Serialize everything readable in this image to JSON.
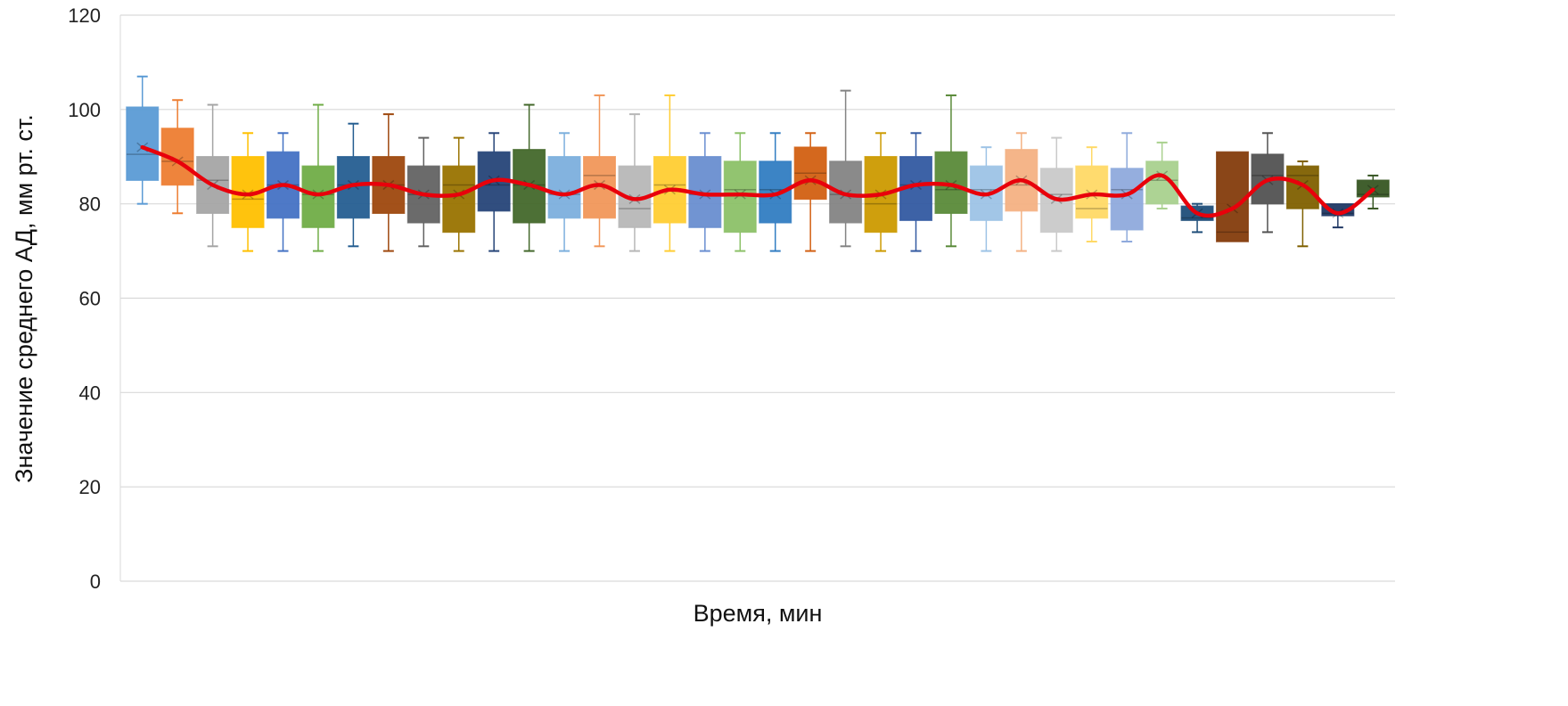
{
  "chart_data": {
    "type": "boxplot",
    "title": "",
    "xlabel": "Время, мин",
    "ylabel": "Значение среднего АД, мм рт. ст.",
    "ylim": [
      0,
      120
    ],
    "yticks": [
      0,
      20,
      40,
      60,
      80,
      100,
      120
    ],
    "grid": true,
    "trend_line_color": "#e8000b",
    "series": [
      {
        "min": 80,
        "q1": 85,
        "median": 90.5,
        "q3": 100.5,
        "max": 107,
        "mean": 92,
        "color": "#5b9bd5"
      },
      {
        "min": 78,
        "q1": 84,
        "median": 89,
        "q3": 96,
        "max": 102,
        "mean": 89,
        "color": "#ed7d31"
      },
      {
        "min": 71,
        "q1": 78,
        "median": 85,
        "q3": 90,
        "max": 101,
        "mean": 84,
        "color": "#a5a5a5"
      },
      {
        "min": 70,
        "q1": 75,
        "median": 81,
        "q3": 90,
        "max": 95,
        "mean": 82,
        "color": "#ffc000"
      },
      {
        "min": 70,
        "q1": 77,
        "median": 84,
        "q3": 91,
        "max": 95,
        "mean": 84,
        "color": "#4472c4"
      },
      {
        "min": 70,
        "q1": 75,
        "median": 82,
        "q3": 88,
        "max": 101,
        "mean": 82,
        "color": "#70ad47"
      },
      {
        "min": 71,
        "q1": 77,
        "median": 84,
        "q3": 90,
        "max": 97,
        "mean": 84,
        "color": "#255e91"
      },
      {
        "min": 70,
        "q1": 78,
        "median": 84,
        "q3": 90,
        "max": 99,
        "mean": 84,
        "color": "#9e480e"
      },
      {
        "min": 71,
        "q1": 76,
        "median": 82,
        "q3": 88,
        "max": 94,
        "mean": 82,
        "color": "#636363"
      },
      {
        "min": 70,
        "q1": 74,
        "median": 84,
        "q3": 88,
        "max": 94,
        "mean": 82,
        "color": "#997300"
      },
      {
        "min": 70,
        "q1": 78.5,
        "median": 84,
        "q3": 91,
        "max": 95,
        "mean": 85,
        "color": "#264478"
      },
      {
        "min": 70,
        "q1": 76,
        "median": 84,
        "q3": 91.5,
        "max": 101,
        "mean": 84,
        "color": "#43682b"
      },
      {
        "min": 70,
        "q1": 77,
        "median": 82,
        "q3": 90,
        "max": 95,
        "mean": 82,
        "color": "#7cafdd"
      },
      {
        "min": 71,
        "q1": 77,
        "median": 86,
        "q3": 90,
        "max": 103,
        "mean": 84,
        "color": "#f1975a"
      },
      {
        "min": 70,
        "q1": 75,
        "median": 79,
        "q3": 88,
        "max": 99,
        "mean": 81,
        "color": "#b7b7b7"
      },
      {
        "min": 70,
        "q1": 76,
        "median": 84,
        "q3": 90,
        "max": 103,
        "mean": 83,
        "color": "#ffcd33"
      },
      {
        "min": 70,
        "q1": 75,
        "median": 82,
        "q3": 90,
        "max": 95,
        "mean": 82,
        "color": "#698ed0"
      },
      {
        "min": 70,
        "q1": 74,
        "median": 83,
        "q3": 89,
        "max": 95,
        "mean": 82,
        "color": "#8cc168"
      },
      {
        "min": 70,
        "q1": 76,
        "median": 83,
        "q3": 89,
        "max": 95,
        "mean": 82,
        "color": "#327dc2"
      },
      {
        "min": 70,
        "q1": 81,
        "median": 86.5,
        "q3": 92,
        "max": 95,
        "mean": 85,
        "color": "#d26012"
      },
      {
        "min": 71,
        "q1": 76,
        "median": 82,
        "q3": 89,
        "max": 104,
        "mean": 82,
        "color": "#848484"
      },
      {
        "min": 70,
        "q1": 74,
        "median": 80,
        "q3": 90,
        "max": 95,
        "mean": 82,
        "color": "#cc9a00"
      },
      {
        "min": 70,
        "q1": 76.5,
        "median": 84,
        "q3": 90,
        "max": 95,
        "mean": 84,
        "color": "#335aa1"
      },
      {
        "min": 71,
        "q1": 78,
        "median": 83,
        "q3": 91,
        "max": 103,
        "mean": 84,
        "color": "#5a8a39"
      },
      {
        "min": 70,
        "q1": 76.5,
        "median": 83,
        "q3": 88,
        "max": 92,
        "mean": 82,
        "color": "#9dc3e6"
      },
      {
        "min": 70,
        "q1": 78.5,
        "median": 84,
        "q3": 91.5,
        "max": 95,
        "mean": 85,
        "color": "#f4b183"
      },
      {
        "min": 70,
        "q1": 74,
        "median": 82,
        "q3": 87.5,
        "max": 94,
        "mean": 81,
        "color": "#c9c9c9"
      },
      {
        "min": 72,
        "q1": 77,
        "median": 79,
        "q3": 88,
        "max": 92,
        "mean": 82,
        "color": "#ffd966"
      },
      {
        "min": 72,
        "q1": 74.5,
        "median": 83,
        "q3": 87.5,
        "max": 95,
        "mean": 82,
        "color": "#8faadc"
      },
      {
        "min": 79,
        "q1": 80,
        "median": 85,
        "q3": 89,
        "max": 93,
        "mean": 86,
        "color": "#a9d18e"
      },
      {
        "min": 74,
        "q1": 76.5,
        "median": 77,
        "q3": 79.5,
        "max": 80,
        "mean": 78,
        "color": "#1f4e79"
      },
      {
        "min": 72,
        "q1": 72,
        "median": 74,
        "q3": 91,
        "max": 91,
        "mean": 79,
        "color": "#843c0c"
      },
      {
        "min": 74,
        "q1": 80,
        "median": 86,
        "q3": 90.5,
        "max": 95,
        "mean": 85,
        "color": "#525252"
      },
      {
        "min": 71,
        "q1": 79,
        "median": 86,
        "q3": 88,
        "max": 89,
        "mean": 84,
        "color": "#7f6000"
      },
      {
        "min": 75,
        "q1": 77.5,
        "median": 78,
        "q3": 80,
        "max": 80,
        "mean": 78,
        "color": "#203864"
      },
      {
        "min": 79,
        "q1": 81.5,
        "median": 82,
        "q3": 85,
        "max": 86,
        "mean": 83,
        "color": "#375623"
      }
    ]
  }
}
